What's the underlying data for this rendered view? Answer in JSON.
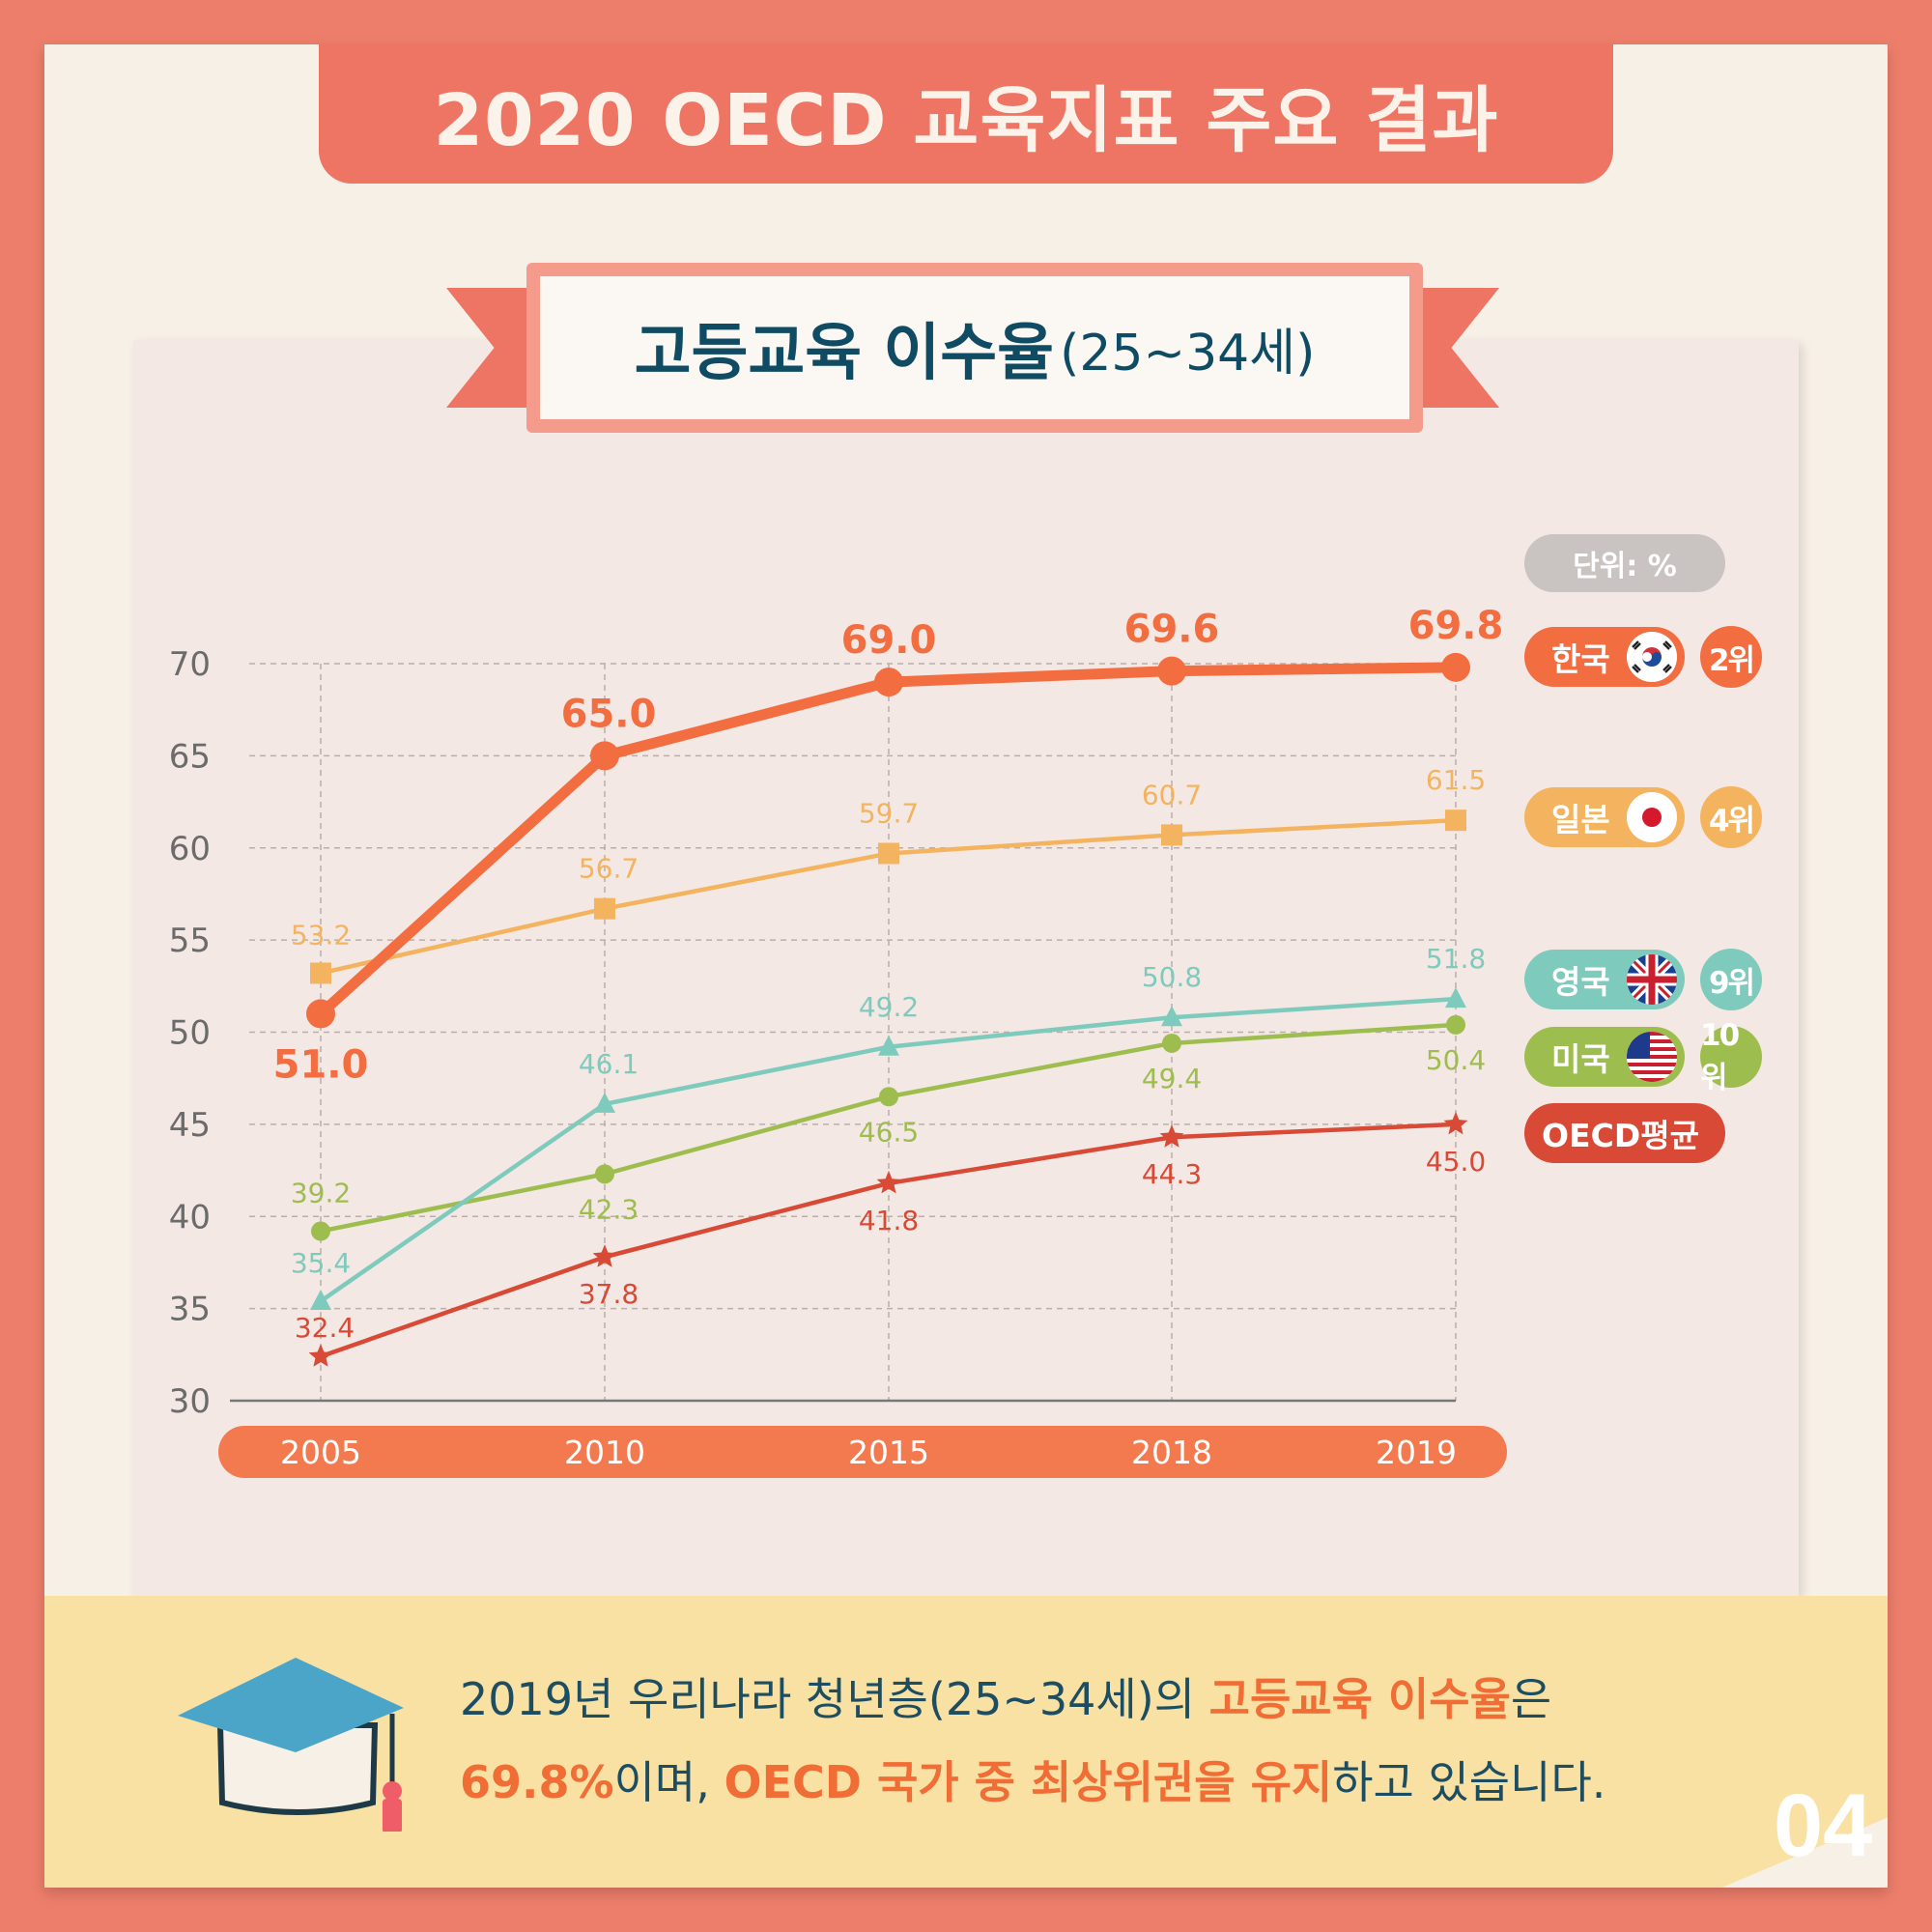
{
  "header": {
    "title": "2020 OECD 교육지표 주요 결과"
  },
  "chart_header": {
    "title": "고등교육 이수율",
    "subtitle": "(25~34세)"
  },
  "unit_label": "단위: %",
  "legend": [
    {
      "label": "한국",
      "rank": "2위",
      "flag": "korea-flag-icon",
      "color": "#f26d3f"
    },
    {
      "label": "일본",
      "rank": "4위",
      "flag": "japan-flag-icon",
      "color": "#f4b45f"
    },
    {
      "label": "영국",
      "rank": "9위",
      "flag": "uk-flag-icon",
      "color": "#7ecbbd"
    },
    {
      "label": "미국",
      "rank": "10위",
      "flag": "us-flag-icon",
      "color": "#9ebd4f"
    },
    {
      "label": "OECD평균",
      "color": "#d84a35"
    }
  ],
  "chart_data": {
    "type": "line",
    "categories": [
      "2005",
      "2010",
      "2015",
      "2018",
      "2019"
    ],
    "ylim": [
      30,
      70
    ],
    "yticks": [
      "30",
      "35",
      "40",
      "45",
      "50",
      "55",
      "60",
      "65",
      "70"
    ],
    "grid": true,
    "series": [
      {
        "name": "한국",
        "values": [
          51.0,
          65.0,
          69.0,
          69.6,
          69.8
        ],
        "labels": [
          "51.0",
          "65.0",
          "69.0",
          "69.6",
          "69.8"
        ],
        "color": "#f26d3f",
        "marker": "circle"
      },
      {
        "name": "일본",
        "values": [
          53.2,
          56.7,
          59.7,
          60.7,
          61.5
        ],
        "labels": [
          "53.2",
          "56.7",
          "59.7",
          "60.7",
          "61.5"
        ],
        "color": "#f4b45f",
        "marker": "square"
      },
      {
        "name": "영국",
        "values": [
          35.4,
          46.1,
          49.2,
          50.8,
          51.8
        ],
        "labels": [
          "35.4",
          "46.1",
          "49.2",
          "50.8",
          "51.8"
        ],
        "color": "#7ecbbd",
        "marker": "triangle"
      },
      {
        "name": "미국",
        "values": [
          39.2,
          42.3,
          46.5,
          49.4,
          50.4
        ],
        "labels": [
          "39.2",
          "42.3",
          "46.5",
          "49.4",
          "50.4"
        ],
        "color": "#9ebd4f",
        "marker": "circle"
      },
      {
        "name": "OECD평균",
        "values": [
          32.4,
          37.8,
          41.8,
          44.3,
          45.0
        ],
        "labels": [
          "32.4",
          "37.8",
          "41.8",
          "44.3",
          "45.0"
        ],
        "color": "#d84a35",
        "marker": "star"
      }
    ]
  },
  "summary": {
    "l1a": "2019년 우리나라 청년층(25~34세)의 ",
    "l1b": "고등교육 이수율",
    "l1c": "은",
    "l2a": "69.8%",
    "l2b": "이며, ",
    "l2c": "OECD 국가 중 최상위권을 유지",
    "l2d": "하고 있습니다."
  },
  "page_number": "04"
}
